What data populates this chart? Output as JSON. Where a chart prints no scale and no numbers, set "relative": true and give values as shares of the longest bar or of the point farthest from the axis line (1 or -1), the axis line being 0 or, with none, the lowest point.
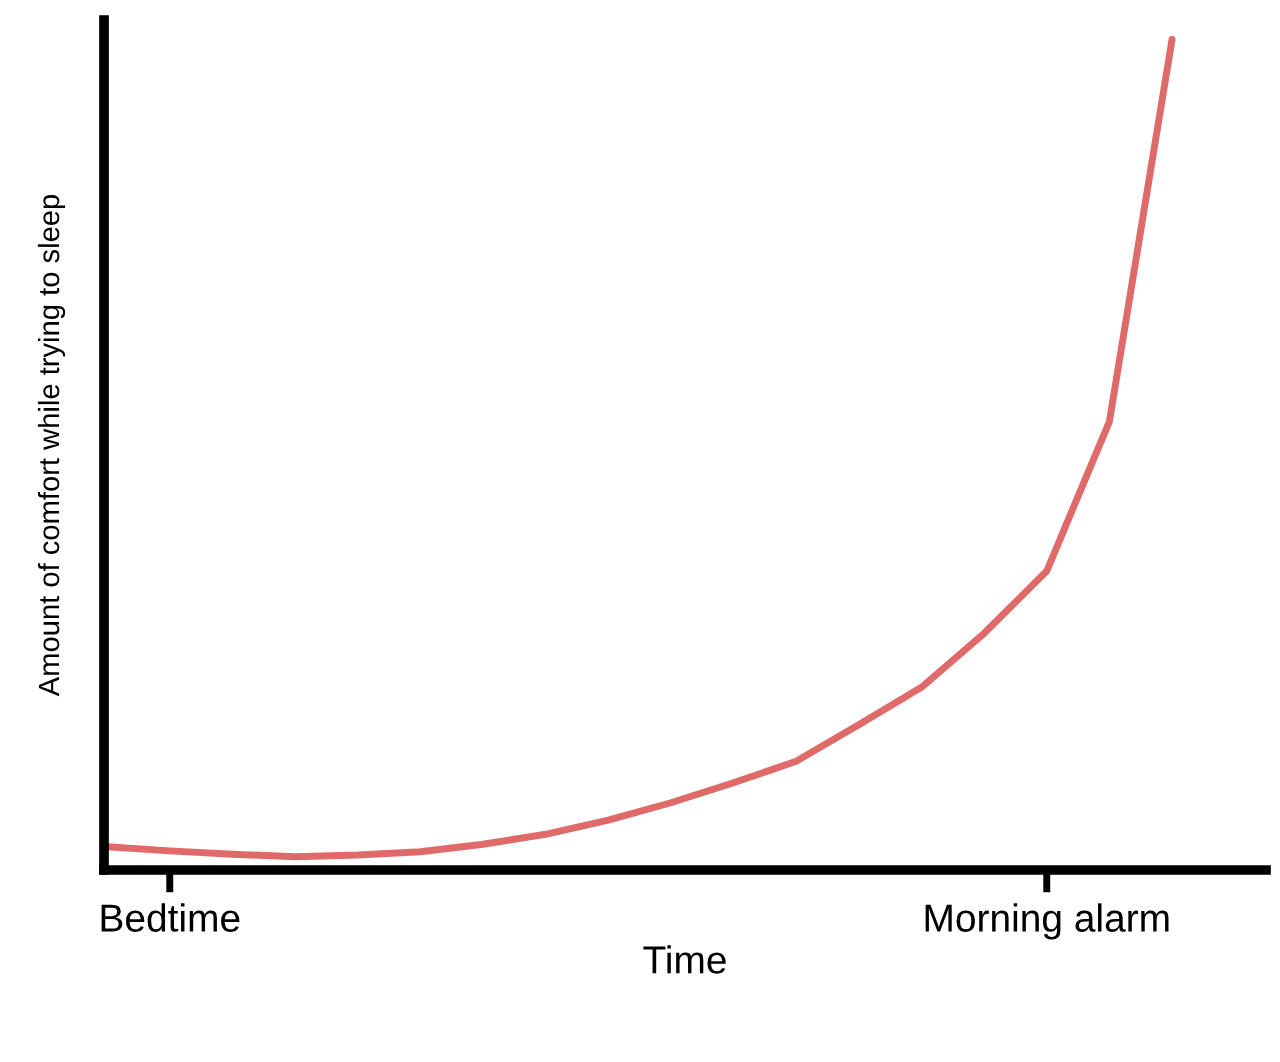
{
  "chart_data": {
    "type": "line",
    "relative": true,
    "xlabel": "Time",
    "ylabel": "Amount of comfort while trying to sleep",
    "categories": [
      null,
      "Bedtime",
      null,
      null,
      null,
      null,
      null,
      null,
      null,
      null,
      null,
      null,
      null,
      null,
      null,
      "Morning alarm",
      null,
      null
    ],
    "tick_labels": "x",
    "grid": false,
    "series": [
      {
        "color": "#e06a6a",
        "values": [
          0.028,
          0.023,
          0.019,
          0.016,
          0.018,
          0.022,
          0.031,
          0.043,
          0.06,
          0.081,
          0.105,
          0.131,
          0.175,
          0.22,
          0.285,
          0.36,
          0.54,
          1.0
        ]
      }
    ]
  }
}
